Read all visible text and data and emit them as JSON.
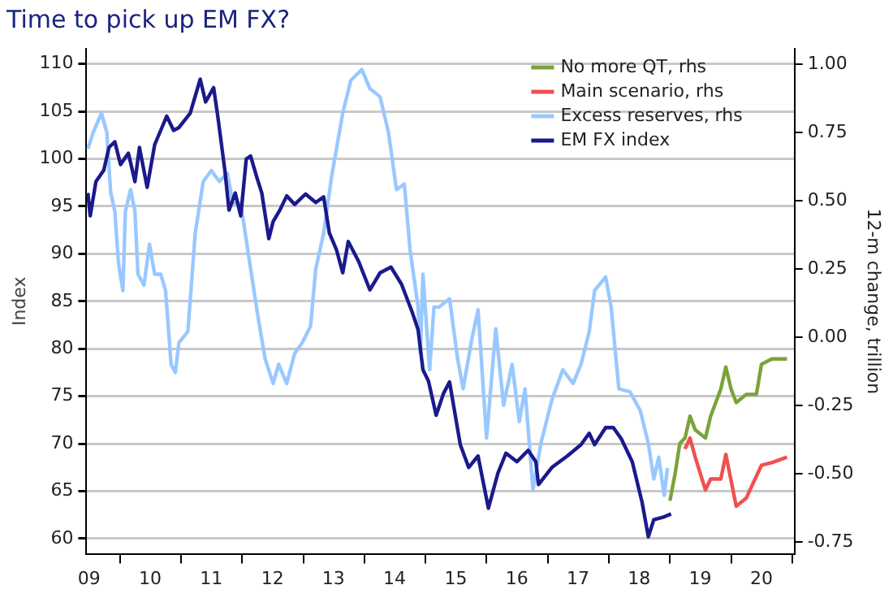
{
  "chart_data": {
    "type": "line",
    "title": "Time to pick up EM FX?",
    "ylabel": "Index",
    "y2label": "12-m change, trillion",
    "xlim": [
      "2009-06-15",
      "2021-01-15"
    ],
    "xticks": [
      {
        "value": "2009-07-01",
        "label": "09"
      },
      {
        "value": "2010-01-01",
        "label": null
      },
      {
        "value": "2010-07-01",
        "label": "10"
      },
      {
        "value": "2011-01-01",
        "label": null
      },
      {
        "value": "2011-07-01",
        "label": "11"
      },
      {
        "value": "2012-01-01",
        "label": null
      },
      {
        "value": "2012-07-01",
        "label": "12"
      },
      {
        "value": "2013-01-01",
        "label": null
      },
      {
        "value": "2013-07-01",
        "label": "13"
      },
      {
        "value": "2014-01-01",
        "label": null
      },
      {
        "value": "2014-07-01",
        "label": "14"
      },
      {
        "value": "2015-01-01",
        "label": null
      },
      {
        "value": "2015-07-01",
        "label": "15"
      },
      {
        "value": "2016-01-01",
        "label": null
      },
      {
        "value": "2016-07-01",
        "label": "16"
      },
      {
        "value": "2017-01-01",
        "label": null
      },
      {
        "value": "2017-07-01",
        "label": "17"
      },
      {
        "value": "2018-01-01",
        "label": null
      },
      {
        "value": "2018-07-01",
        "label": "18"
      },
      {
        "value": "2019-01-01",
        "label": null
      },
      {
        "value": "2019-07-01",
        "label": "19"
      },
      {
        "value": "2020-01-01",
        "label": null
      },
      {
        "value": "2020-07-01",
        "label": "20"
      },
      {
        "value": "2021-01-01",
        "label": null
      }
    ],
    "ylim": [
      58.4,
      111.6
    ],
    "yticks": [
      60,
      65,
      70,
      75,
      80,
      85,
      90,
      95,
      100,
      105,
      110
    ],
    "y2lim": [
      -0.794,
      1.056
    ],
    "y2ticks": [
      {
        "value": -0.75,
        "label": "-0.75"
      },
      {
        "value": -0.5,
        "label": "-0.50"
      },
      {
        "value": -0.25,
        "label": "-0.25"
      },
      {
        "value": 0,
        "label": "0.00"
      },
      {
        "value": 0.25,
        "label": "0.25"
      },
      {
        "value": 0.5,
        "label": "0.50"
      },
      {
        "value": 0.75,
        "label": "0.75"
      },
      {
        "value": 1,
        "label": "1.00"
      }
    ],
    "grid": "y",
    "legend": "top right",
    "line_style": "solid",
    "series": [
      {
        "name": "No more QT, rhs",
        "color": "#7aa33a",
        "axis": "y2",
        "x": [
          "2019-01",
          "2019-02",
          "2019-03",
          "2019-04",
          "2019-05",
          "2019-06",
          "2019-08",
          "2019-09",
          "2019-11",
          "2019-12",
          "2020-01",
          "2020-02",
          "2020-04",
          "2020-06",
          "2020-07",
          "2020-09",
          "2020-12"
        ],
        "values": [
          -0.6,
          -0.5,
          -0.39,
          -0.37,
          -0.29,
          -0.34,
          -0.37,
          -0.29,
          -0.19,
          -0.11,
          -0.19,
          -0.24,
          -0.21,
          -0.21,
          -0.1,
          -0.08,
          -0.08
        ]
      },
      {
        "name": "Main scenario, rhs",
        "color": "#f05050",
        "axis": "y2",
        "x": [
          "2019-04",
          "2019-05",
          "2019-06",
          "2019-08",
          "2019-09",
          "2019-11",
          "2019-12",
          "2020-02",
          "2020-04",
          "2020-05",
          "2020-07",
          "2020-09",
          "2020-12"
        ],
        "values": [
          -0.41,
          -0.37,
          -0.44,
          -0.56,
          -0.52,
          -0.52,
          -0.43,
          -0.62,
          -0.59,
          -0.55,
          -0.47,
          -0.46,
          -0.44
        ]
      },
      {
        "name": "Excess reserves, rhs",
        "color": "#99c8ff",
        "axis": "y2",
        "x": [
          "2009-06-24",
          "2009-07-26",
          "2009-09-13",
          "2009-10-15",
          "2009-11-07",
          "2009-12-02",
          "2009-12-24",
          "2010-01-19",
          "2010-02-03",
          "2010-03-06",
          "2010-04-01",
          "2010-04-19",
          "2010-05-25",
          "2010-06-27",
          "2010-07-28",
          "2010-09-02",
          "2010-10-01",
          "2010-11-03",
          "2010-11-28",
          "2010-12-20",
          "2011-02-11",
          "2011-03-27",
          "2011-05-14",
          "2011-07-01",
          "2011-08-18",
          "2011-10-05",
          "2011-11-07",
          "2011-12-24",
          "2012-02-11",
          "2012-04-01",
          "2012-05-18",
          "2012-07-05",
          "2012-08-07",
          "2012-09-24",
          "2012-11-11",
          "2012-12-27",
          "2013-02-14",
          "2013-03-17",
          "2013-05-03",
          "2013-06-20",
          "2013-08-25",
          "2013-10-12",
          "2013-12-17",
          "2014-02-03",
          "2014-04-05",
          "2014-05-25",
          "2014-07-12",
          "2014-08-28",
          "2014-10-01",
          "2014-11-18",
          "2014-12-02",
          "2014-12-17",
          "2015-01-26",
          "2015-02-21",
          "2015-03-24",
          "2015-05-25",
          "2015-07-12",
          "2015-08-14",
          "2015-10-01",
          "2015-11-11",
          "2016-01-01",
          "2016-02-25",
          "2016-04-12",
          "2016-06-02",
          "2016-07-15",
          "2016-08-18",
          "2016-10-05",
          "2016-11-21",
          "2017-01-26",
          "2017-04-01",
          "2017-06-02",
          "2017-07-19",
          "2017-09-06",
          "2017-10-08",
          "2017-12-13",
          "2018-01-15",
          "2018-03-02",
          "2018-05-07",
          "2018-07-08",
          "2018-08-25",
          "2018-09-27",
          "2018-10-26",
          "2018-11-28",
          "2018-12-17"
        ],
        "values": [
          0.69,
          0.75,
          0.82,
          0.75,
          0.53,
          0.46,
          0.27,
          0.17,
          0.46,
          0.54,
          0.46,
          0.23,
          0.19,
          0.34,
          0.23,
          0.23,
          0.17,
          -0.1,
          -0.13,
          -0.02,
          0.02,
          0.38,
          0.57,
          0.61,
          0.57,
          0.6,
          0.49,
          0.49,
          0.29,
          0.09,
          -0.08,
          -0.17,
          -0.1,
          -0.17,
          -0.06,
          -0.02,
          0.04,
          0.25,
          0.38,
          0.59,
          0.82,
          0.94,
          0.98,
          0.91,
          0.88,
          0.75,
          0.54,
          0.56,
          0.32,
          0.11,
          -0.06,
          0.23,
          -0.12,
          0.11,
          0.11,
          0.14,
          -0.08,
          -0.19,
          -0.02,
          0.1,
          -0.37,
          0.03,
          -0.25,
          -0.1,
          -0.31,
          -0.19,
          -0.56,
          -0.39,
          -0.23,
          -0.12,
          -0.17,
          -0.1,
          0.02,
          0.17,
          0.22,
          0.11,
          -0.19,
          -0.2,
          -0.27,
          -0.39,
          -0.52,
          -0.44,
          -0.58,
          -0.48
        ]
      },
      {
        "name": "EM FX index",
        "color": "#1a1a8c",
        "x": [
          "2009-06-24",
          "2009-07-08",
          "2009-08-11",
          "2009-09-27",
          "2009-10-28",
          "2009-12-02",
          "2010-01-05",
          "2010-02-21",
          "2010-04-01",
          "2010-04-28",
          "2010-06-13",
          "2010-07-28",
          "2010-09-02",
          "2010-10-08",
          "2010-11-18",
          "2010-12-20",
          "2011-02-25",
          "2011-04-26",
          "2011-05-28",
          "2011-07-15",
          "2011-08-11",
          "2011-09-20",
          "2011-10-15",
          "2011-11-21",
          "2011-12-24",
          "2012-01-26",
          "2012-02-21",
          "2012-04-01",
          "2012-04-28",
          "2012-06-09",
          "2012-07-05",
          "2012-08-14",
          "2012-09-24",
          "2012-11-11",
          "2013-01-15",
          "2013-03-17",
          "2013-05-03",
          "2013-06-06",
          "2013-07-19",
          "2013-08-25",
          "2013-09-27",
          "2013-11-28",
          "2014-02-03",
          "2014-04-05",
          "2014-06-09",
          "2014-08-11",
          "2014-10-15",
          "2014-11-18",
          "2014-12-17",
          "2015-01-19",
          "2015-03-06",
          "2015-04-19",
          "2015-05-25",
          "2015-07-28",
          "2015-09-16",
          "2015-11-11",
          "2016-01-12",
          "2016-03-09",
          "2016-04-26",
          "2016-07-01",
          "2016-09-06",
          "2016-10-22",
          "2016-11-07",
          "2017-01-26",
          "2017-04-28",
          "2017-07-19",
          "2017-09-06",
          "2017-10-08",
          "2017-12-13",
          "2018-01-28",
          "2018-03-17",
          "2018-05-21",
          "2018-07-19",
          "2018-08-25",
          "2018-09-27",
          "2018-11-28",
          "2019-01-08"
        ],
        "values": [
          96.4,
          94,
          97.6,
          98.8,
          101.2,
          101.8,
          99.4,
          100.6,
          97.6,
          101.2,
          97,
          101.5,
          103,
          104.5,
          103,
          103.3,
          104.8,
          108.4,
          106,
          107.5,
          104.2,
          98.8,
          94.6,
          96.4,
          94,
          100,
          100.3,
          97.9,
          96.4,
          91.6,
          93.4,
          94.6,
          96.1,
          95.2,
          96.3,
          95.4,
          96,
          92.2,
          90.4,
          88,
          91.3,
          89.2,
          86.2,
          88,
          88.6,
          86.8,
          83.8,
          82,
          77.8,
          76.6,
          73,
          75.3,
          76.5,
          69.9,
          67.5,
          68.7,
          63.2,
          66.9,
          69,
          68.1,
          69.3,
          68.1,
          65.7,
          67.5,
          68.7,
          69.9,
          71.1,
          69.9,
          71.7,
          71.7,
          70.5,
          68.1,
          63.8,
          60.2,
          62,
          62.3,
          62.6
        ]
      }
    ]
  }
}
